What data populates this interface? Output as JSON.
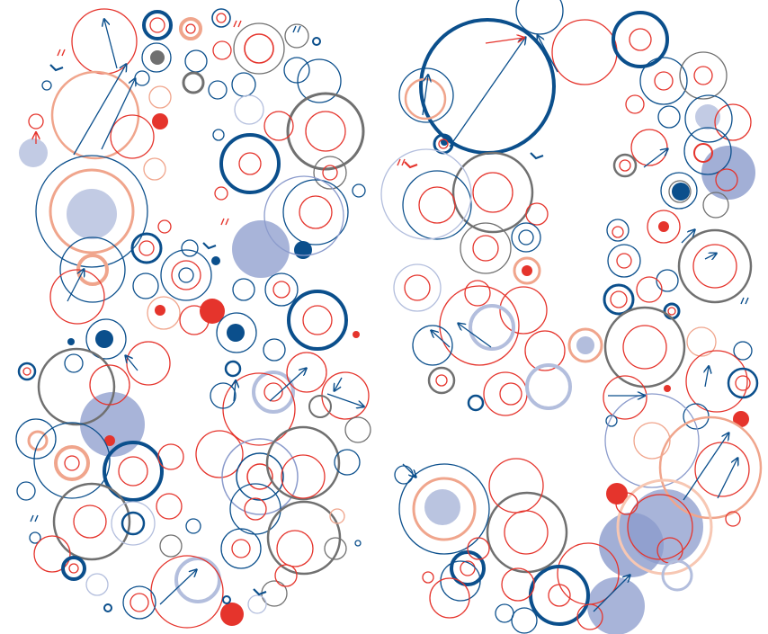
{
  "palette": {
    "navy": "#0b4f8c",
    "red": "#e5342c",
    "salmon": "#f0a58c",
    "pale_salmon": "#f7c7b3",
    "gray": "#707070",
    "lavender": "#b3bedd",
    "periwinkle": "#8b9bcc",
    "background": "#ffffff"
  },
  "glyphs": [
    {
      "name": "digit-8"
    },
    {
      "name": "digit-9"
    }
  ],
  "motifs": [
    "ring",
    "filled-disc",
    "arrow",
    "chevron",
    "tick-mark"
  ]
}
